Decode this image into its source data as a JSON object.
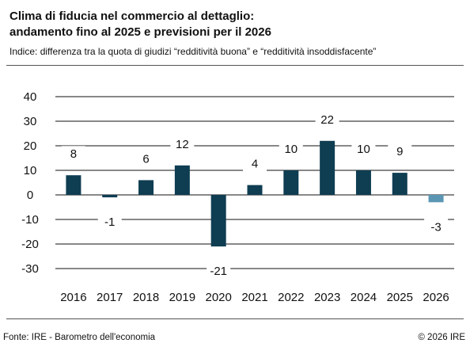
{
  "title_line1": "Clima di fiducia nel commercio al dettaglio:",
  "title_line2": "andamento fino al 2025 e previsioni per il 2026",
  "subtitle": "Indice: differenza tra la quota di giudizi “redditività buona” e “redditività insoddisfacente”",
  "footer": {
    "source": "Fonte: IRE - Barometro dell'economia",
    "copyright": "© 2026 IRE"
  },
  "colors": {
    "bar": "#0f3d52",
    "bar_forecast": "#5b97b5",
    "grid": "#111111"
  },
  "chart_data": {
    "type": "bar",
    "categories": [
      "2016",
      "2017",
      "2018",
      "2019",
      "2020",
      "2021",
      "2022",
      "2023",
      "2024",
      "2025",
      "2026"
    ],
    "values": [
      8,
      -1,
      6,
      12,
      -21,
      4,
      10,
      22,
      10,
      9,
      -3
    ],
    "data_labels": [
      "8",
      "-1",
      "6",
      "12",
      "-21",
      "4",
      "10",
      "22",
      "10",
      "9",
      "-3"
    ],
    "forecast": [
      false,
      false,
      false,
      false,
      false,
      false,
      false,
      false,
      false,
      false,
      true
    ],
    "yticks": [
      "40",
      "30",
      "20",
      "10",
      "0",
      "-10",
      "-20",
      "-30"
    ],
    "ylim": [
      -30,
      40
    ],
    "grid": true,
    "title": "",
    "xlabel": "",
    "ylabel": ""
  }
}
